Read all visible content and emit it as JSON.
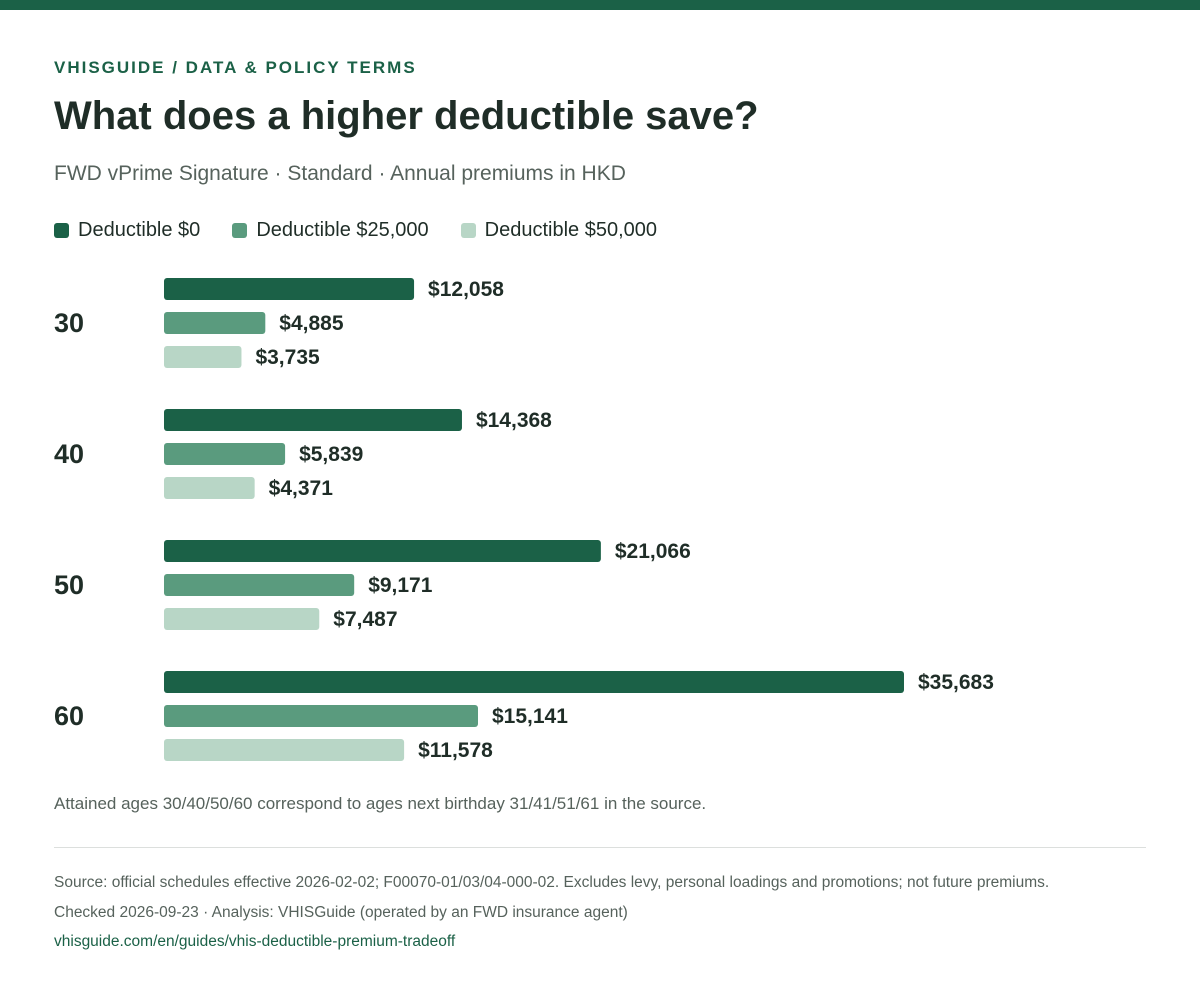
{
  "header": {
    "eyebrow": "VHISGUIDE / DATA & POLICY TERMS",
    "title": "What does a higher deductible save?",
    "subtitle": "FWD vPrime Signature · Standard · Annual premiums in HKD"
  },
  "legend": [
    {
      "label": "Deductible $0",
      "color": "#1b6147"
    },
    {
      "label": "Deductible $25,000",
      "color": "#5a9b7e"
    },
    {
      "label": "Deductible $50,000",
      "color": "#b8d6c6"
    }
  ],
  "chart_data": {
    "type": "bar",
    "orientation": "horizontal",
    "title": "What does a higher deductible save?",
    "subtitle": "FWD vPrime Signature · Standard · Annual premiums in HKD",
    "categories": [
      "30",
      "40",
      "50",
      "60"
    ],
    "series": [
      {
        "name": "Deductible $0",
        "color": "#1b6147",
        "values": [
          12058,
          14368,
          21066,
          35683
        ],
        "labels": [
          "$12,058",
          "$14,368",
          "$21,066",
          "$35,683"
        ]
      },
      {
        "name": "Deductible $25,000",
        "color": "#5a9b7e",
        "values": [
          4885,
          5839,
          9171,
          15141
        ],
        "labels": [
          "$4,885",
          "$5,839",
          "$9,171",
          "$15,141"
        ]
      },
      {
        "name": "Deductible $50,000",
        "color": "#b8d6c6",
        "values": [
          3735,
          4371,
          7487,
          11578
        ],
        "labels": [
          "$3,735",
          "$4,371",
          "$7,487",
          "$11,578"
        ]
      }
    ],
    "xlim": [
      0,
      35683
    ],
    "grid": false,
    "legend_position": "top-left"
  },
  "note": "Attained ages 30/40/50/60 correspond to ages next birthday 31/41/51/61 in the source.",
  "footer": {
    "source": "Source: official schedules effective 2026-02-02; F00070-01/03/04-000-02. Excludes levy, personal loadings and promotions; not future premiums.",
    "checked": "Checked 2026-09-23 · Analysis: VHISGuide (operated by an FWD insurance agent)",
    "url": "vhisguide.com/en/guides/vhis-deductible-premium-tradeoff"
  }
}
